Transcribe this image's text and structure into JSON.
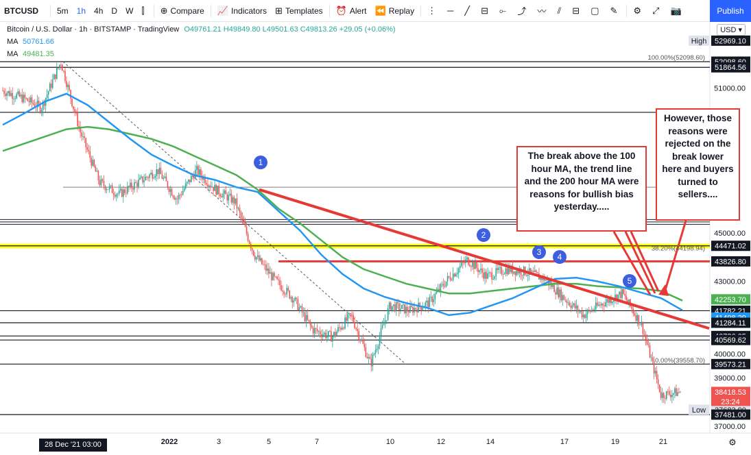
{
  "toolbar": {
    "symbol": "BTCUSD",
    "timeframes": [
      "5m",
      "1h",
      "4h",
      "D",
      "W"
    ],
    "active_timeframe": "1h",
    "compare_label": "Compare",
    "indicators_label": "Indicators",
    "templates_label": "Templates",
    "alert_label": "Alert",
    "replay_label": "Replay",
    "publish_label": "Publish"
  },
  "legend": {
    "title": "Bitcoin / U.S. Dollar · 1h · BITSTAMP · TradingView",
    "ohlc": "O49761.21 H49849.80 L49501.63 C49813.26 +29.05 (+0.06%)",
    "ma1_label": "MA",
    "ma1_value": "50761.66",
    "ma2_label": "MA",
    "ma2_value": "49481.35"
  },
  "currency": "USD",
  "colors": {
    "ma100": "#2196f3",
    "ma200": "#4caf50",
    "up": "#26a69a",
    "down": "#ef5350",
    "annotation": "#e53935",
    "fib_band": "#ffff00",
    "circle": "#3b5fe0"
  },
  "chart_data": {
    "type": "line",
    "title": "Bitcoin / U.S. Dollar · 1h · BITSTAMP",
    "ylim": [
      37100,
      53500
    ],
    "x_ticks": [
      "28 Dec '21 03:00",
      "2022",
      "3",
      "5",
      "7",
      "10",
      "12",
      "14",
      "17",
      "19",
      "21"
    ],
    "y_ticks": [
      "51000.00",
      "45000.00",
      "43000.00",
      "40000.00",
      "39000.00",
      "37000.00"
    ],
    "horizontal_levels": [
      {
        "label": "52098.60",
        "value": 52098.6
      },
      {
        "label": "51864.56",
        "value": 51864.56
      },
      {
        "label": "50000.00",
        "value": 50000
      },
      {
        "label": "44471.02",
        "value": 44471.02
      },
      {
        "label": "43826.80",
        "value": 43826.8
      },
      {
        "label": "41782.21",
        "value": 41782.21
      },
      {
        "label": "41284.11",
        "value": 41284.11
      },
      {
        "label": "40736.05",
        "value": 40736.05
      },
      {
        "label": "40569.62",
        "value": 40569.62
      },
      {
        "label": "39573.21",
        "value": 39573.21
      },
      {
        "label": "37481.00",
        "value": 37481.0
      }
    ],
    "price_labels": [
      {
        "label": "52969.10",
        "value": 52969.1,
        "color": "#131722",
        "tag": "High"
      },
      {
        "label": "52098.60",
        "value": 52098.6,
        "color": "#131722",
        "tag": ""
      },
      {
        "label": "51864.56",
        "value": 51864.56,
        "color": "#131722",
        "tag": ""
      },
      {
        "label": "44471.02",
        "value": 44471.02,
        "color": "#131722",
        "tag": ""
      },
      {
        "label": "43826.80",
        "value": 43826.8,
        "color": "#131722",
        "tag": ""
      },
      {
        "label": "42253.70",
        "value": 42253.7,
        "color": "#4caf50",
        "tag": ""
      },
      {
        "label": "41782.21",
        "value": 41782.21,
        "color": "#131722",
        "tag": ""
      },
      {
        "label": "41498.29",
        "value": 41498.29,
        "color": "#2196f3",
        "tag": ""
      },
      {
        "label": "41284.11",
        "value": 41284.11,
        "color": "#131722",
        "tag": ""
      },
      {
        "label": "40736.05",
        "value": 40736.05,
        "color": "#131722",
        "tag": ""
      },
      {
        "label": "40569.62",
        "value": 40569.62,
        "color": "#131722",
        "tag": ""
      },
      {
        "label": "39573.21",
        "value": 39573.21,
        "color": "#131722",
        "tag": ""
      },
      {
        "label": "38418.53",
        "value": 38418.53,
        "color": "#ef5350",
        "tag": ""
      },
      {
        "label": "37683.90",
        "value": 37683.9,
        "color": "#e0e3eb",
        "tag": "Low"
      },
      {
        "label": "37481.00",
        "value": 37481.0,
        "color": "#131722",
        "tag": ""
      }
    ],
    "countdown": "23:24",
    "fib_labels": [
      {
        "text": "100.00%(52098.60)",
        "value": 52098.6
      },
      {
        "text": "38.20%(44198.94)",
        "value": 44198.94
      },
      {
        "text": "0.00%(39558.70)",
        "value": 39558.7
      }
    ],
    "series": [
      {
        "name": "MA",
        "values": [
          49481,
          49950,
          50450,
          50770,
          50300,
          49600,
          48900,
          48250,
          47800,
          47400,
          47200,
          46900,
          46700,
          45900,
          45100,
          44100,
          43300,
          42700,
          42350,
          42100,
          41900,
          41600,
          41700,
          42000,
          42300,
          42700,
          43100,
          43150,
          43000,
          42800,
          42550,
          42300,
          41800
        ]
      },
      {
        "name": "MA",
        "values": [
          48400,
          48700,
          49000,
          49300,
          49400,
          49300,
          49100,
          48900,
          48600,
          48200,
          47800,
          47400,
          46800,
          46000,
          45400,
          44700,
          44000,
          43500,
          43200,
          42900,
          42700,
          42500,
          42500,
          42600,
          42700,
          42800,
          42900,
          42900,
          42800,
          42750,
          42700,
          42600,
          42200
        ]
      },
      {
        "name": "BTCUSD",
        "values": [
          50900,
          50600,
          50200,
          52098,
          49200,
          47100,
          46600,
          47100,
          47600,
          46400,
          47600,
          46800,
          46300,
          44100,
          43100,
          42300,
          41000,
          40700,
          41600,
          39560,
          42000,
          41800,
          42100,
          43100,
          43900,
          43200,
          43500,
          43400,
          43100,
          42300,
          41600,
          42100,
          42500,
          41200,
          38300,
          38418
        ]
      }
    ],
    "trendlines": [
      {
        "from": [
          4.63,
          46800
        ],
        "to": [
          22.2,
          41280
        ]
      },
      {
        "from": [
          5.0,
          43826.8
        ],
        "to": [
          22.2,
          43826.8
        ]
      }
    ],
    "markers": [
      "1",
      "2",
      "3",
      "4",
      "5"
    ]
  },
  "annotations": {
    "box1": "The break above the 100 hour MA, the trend line and the 200 hour MA were reasons for bullish bias yesterday.....",
    "box2": "However, those reasons were rejected on the break lower here and buyers turned to sellers...."
  },
  "cursor_date": "28 Dec '21   03:00"
}
